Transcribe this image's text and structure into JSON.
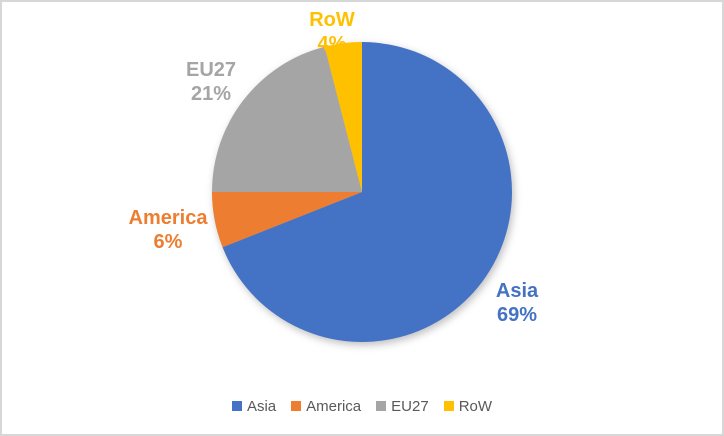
{
  "chart_data": {
    "type": "pie",
    "title": "",
    "start_angle_deg": 0,
    "direction": "clockwise",
    "legend_position": "bottom",
    "slices": [
      {
        "label": "Asia",
        "value": 69,
        "pct_label": "69%",
        "color": "#4472C4"
      },
      {
        "label": "America",
        "value": 6,
        "pct_label": "6%",
        "color": "#ED7D31"
      },
      {
        "label": "EU27",
        "value": 21,
        "pct_label": "21%",
        "color": "#A5A5A5"
      },
      {
        "label": "RoW",
        "value": 4,
        "pct_label": "4%",
        "color": "#FFC000"
      }
    ],
    "legend_entries": [
      "Asia",
      "America",
      "EU27",
      "RoW"
    ],
    "legend_text_color": "#595959"
  }
}
